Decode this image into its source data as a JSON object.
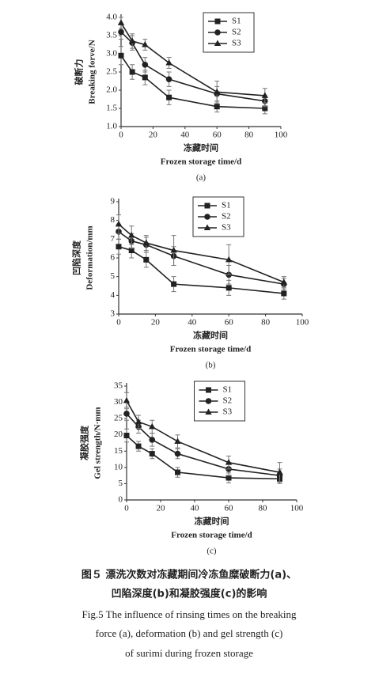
{
  "chart_data": [
    {
      "type": "line",
      "x": [
        0,
        7,
        15,
        30,
        60,
        90
      ],
      "series": [
        {
          "name": "S1",
          "marker": "square",
          "color": "#222",
          "values": [
            2.95,
            2.5,
            2.35,
            1.8,
            1.55,
            1.5
          ],
          "errors": [
            0.25,
            0.2,
            0.2,
            0.2,
            0.15,
            0.15
          ]
        },
        {
          "name": "S2",
          "marker": "circle",
          "color": "#222",
          "values": [
            3.6,
            3.3,
            2.7,
            2.3,
            1.9,
            1.7
          ],
          "errors": [
            0.2,
            0.2,
            0.2,
            0.2,
            0.2,
            0.15
          ]
        },
        {
          "name": "S3",
          "marker": "triangle",
          "color": "#222",
          "values": [
            3.85,
            3.35,
            3.25,
            2.75,
            1.95,
            1.85
          ],
          "errors": [
            0.15,
            0.2,
            0.15,
            0.15,
            0.3,
            0.2
          ]
        }
      ],
      "xlim": [
        0,
        100
      ],
      "xticks": [
        0,
        20,
        40,
        60,
        80,
        100
      ],
      "ylim": [
        1,
        4
      ],
      "yticks": [
        {
          "value": 1,
          "label": "1.0"
        },
        1.5,
        {
          "value": 2,
          "label": "2.0"
        },
        2.5,
        {
          "value": 3,
          "label": "3.0"
        },
        3.5,
        {
          "value": 4,
          "label": "4.0"
        }
      ],
      "xlabel": [
        "冻藏时间",
        "Frozen storage time/d"
      ],
      "ylabel": [
        "破断力",
        "Breaking forve/N"
      ],
      "panel_label": "(a)",
      "legend": "top-right"
    },
    {
      "type": "line",
      "x": [
        0,
        7,
        15,
        30,
        60,
        90
      ],
      "series": [
        {
          "name": "S1",
          "marker": "square",
          "color": "#222",
          "values": [
            6.6,
            6.4,
            5.9,
            4.6,
            4.4,
            4.1
          ],
          "errors": [
            0.4,
            0.4,
            0.4,
            0.4,
            0.4,
            0.3
          ]
        },
        {
          "name": "S2",
          "marker": "circle",
          "color": "#222",
          "values": [
            7.4,
            6.9,
            6.7,
            6.1,
            5.1,
            4.6
          ],
          "errors": [
            0.4,
            0.4,
            0.4,
            0.5,
            0.5,
            0.3
          ]
        },
        {
          "name": "S3",
          "marker": "triangle",
          "color": "#222",
          "values": [
            7.8,
            7.2,
            6.8,
            6.4,
            5.9,
            4.7
          ],
          "errors": [
            0.5,
            0.5,
            0.4,
            0.8,
            0.8,
            0.3
          ]
        }
      ],
      "xlim": [
        0,
        100
      ],
      "xticks": [
        0,
        20,
        40,
        60,
        80,
        100
      ],
      "ylim": [
        3,
        9
      ],
      "yticks": [
        3,
        4,
        5,
        6,
        7,
        8,
        9
      ],
      "xlabel": [
        "冻藏时间",
        "Frozen storage time/d"
      ],
      "ylabel": [
        "凹陷深度",
        "Deformation/mm"
      ],
      "panel_label": "(b)",
      "legend": "top-center"
    },
    {
      "type": "line",
      "x": [
        0,
        7,
        15,
        30,
        60,
        90
      ],
      "series": [
        {
          "name": "S1",
          "marker": "square",
          "color": "#222",
          "values": [
            19.8,
            16.5,
            14.2,
            8.5,
            6.8,
            6.5
          ],
          "errors": [
            2,
            1.5,
            1.5,
            1.5,
            1.5,
            1.5
          ]
        },
        {
          "name": "S2",
          "marker": "circle",
          "color": "#222",
          "values": [
            26.5,
            22.5,
            18.5,
            14.2,
            9.5,
            7.5
          ],
          "errors": [
            2,
            2,
            2,
            1.5,
            2,
            2
          ]
        },
        {
          "name": "S3",
          "marker": "triangle",
          "color": "#222",
          "values": [
            30.5,
            24,
            22.5,
            18,
            11.5,
            8.5
          ],
          "errors": [
            2.5,
            2,
            2,
            2,
            2,
            3
          ]
        }
      ],
      "xlim": [
        0,
        100
      ],
      "xticks": [
        0,
        20,
        40,
        60,
        80,
        100
      ],
      "ylim": [
        0,
        35
      ],
      "yticks": [
        0,
        5,
        10,
        15,
        20,
        25,
        30,
        35
      ],
      "xlabel": [
        "冻藏时间",
        "Frozen storage time/d"
      ],
      "ylabel": [
        "凝胶强度",
        "Gel strength/N·mm"
      ],
      "panel_label": "(c)",
      "legend": "top-center"
    }
  ],
  "caption": {
    "cn": [
      "图５ 漂洗次数对冻藏期间冷冻鱼糜破断力(a)、",
      "凹陷深度(b)和凝胶强度(c)的影响"
    ],
    "en": [
      "Fig.5 The influence of rinsing times on the breaking",
      "force (a), deformation (b) and gel strength (c)",
      "of surimi during frozen storage"
    ]
  }
}
